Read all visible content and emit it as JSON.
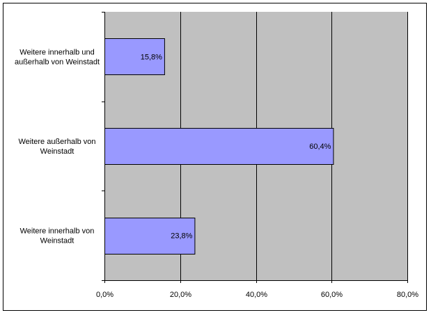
{
  "chart_data": {
    "type": "bar",
    "orientation": "horizontal",
    "categories": [
      [
        "Weitere innerhalb und",
        "außerhalb von Weinstadt"
      ],
      [
        "Weitere außerhalb von",
        "Weinstadt"
      ],
      [
        "Weitere innerhalb von",
        "Weinstadt"
      ]
    ],
    "values": [
      15.8,
      60.4,
      23.8
    ],
    "value_labels": [
      "15,8%",
      "60,4%",
      "23,8%"
    ],
    "xlim": [
      0,
      80
    ],
    "ticks": [
      0,
      20,
      40,
      60,
      80
    ],
    "tick_labels": [
      "0,0%",
      "20,0%",
      "40,0%",
      "60,0%",
      "80,0%"
    ],
    "grid": true,
    "legend": "none",
    "colors": {
      "bar_fill": "#9999ff",
      "plot_bg": "#c0c0c0",
      "grid": "#000000"
    }
  }
}
